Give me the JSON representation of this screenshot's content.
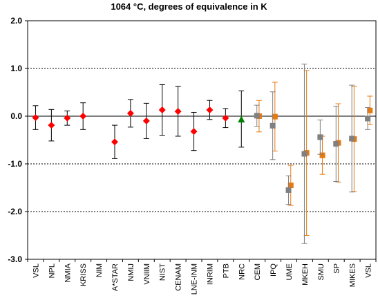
{
  "chart_data": {
    "type": "scatter",
    "title": "1064 °C, degrees of equivalence in K",
    "xlabel": "",
    "ylabel": "",
    "ylim": [
      -3.0,
      2.0
    ],
    "yticks": [
      -3.0,
      -2.0,
      -1.0,
      0.0,
      1.0,
      2.0
    ],
    "ytick_labels": [
      "-3.0",
      "-2.0",
      "-1.0",
      "0.0",
      "1.0",
      "2.0"
    ],
    "dotted_gridlines_at": [
      -2.0,
      -1.0,
      1.0
    ],
    "zero_line": true,
    "categories": [
      "VSL",
      "NPL",
      "NMIA",
      "KRISS",
      "NIM",
      "A*STAR",
      "NMIJ",
      "VNIIM",
      "NIST",
      "CENAM",
      "LNE-INM",
      "INRIM",
      "PTB",
      "NRC",
      "CEM",
      "IPQ",
      "UME",
      "MKEH",
      "SMU",
      "SP",
      "MIKES",
      "VSL"
    ],
    "series": [
      {
        "marker": "diamond",
        "color": "#ff0000",
        "bar_color": "#000000",
        "points": [
          {
            "cat": 0,
            "y": -0.03,
            "err": 0.25
          },
          {
            "cat": 1,
            "y": -0.19,
            "err": 0.33
          },
          {
            "cat": 2,
            "y": -0.04,
            "err": 0.15
          },
          {
            "cat": 3,
            "y": 0.0,
            "err": 0.28
          },
          {
            "cat": 5,
            "y": -0.54,
            "err": 0.35
          },
          {
            "cat": 6,
            "y": 0.06,
            "err": 0.29
          },
          {
            "cat": 7,
            "y": -0.1,
            "err": 0.37
          },
          {
            "cat": 8,
            "y": 0.13,
            "err": 0.53
          },
          {
            "cat": 9,
            "y": 0.1,
            "err": 0.52
          },
          {
            "cat": 10,
            "y": -0.32,
            "err": 0.4
          },
          {
            "cat": 11,
            "y": 0.13,
            "err": 0.2
          },
          {
            "cat": 12,
            "y": -0.04,
            "err": 0.2
          }
        ]
      },
      {
        "marker": "triangle",
        "color": "#008000",
        "bar_color": "#000000",
        "points": [
          {
            "cat": 13,
            "y": -0.06,
            "err": 0.59
          }
        ]
      },
      {
        "marker": "square",
        "color": "#e8790e",
        "bar_color": "#e8790e",
        "offset": 0.12,
        "points": [
          {
            "cat": 14,
            "y": 0.0,
            "err": 0.33
          },
          {
            "cat": 15,
            "y": -0.01,
            "err": 0.72
          },
          {
            "cat": 16,
            "y": -1.45,
            "err": 0.42
          },
          {
            "cat": 17,
            "y": -0.77,
            "err": 1.73
          },
          {
            "cat": 18,
            "y": -0.82,
            "err": 0.4
          },
          {
            "cat": 19,
            "y": -0.56,
            "err": 0.82
          },
          {
            "cat": 20,
            "y": -0.48,
            "err": 1.1
          },
          {
            "cat": 21,
            "y": 0.12,
            "err": 0.3
          }
        ]
      },
      {
        "marker": "square",
        "color": "#808080",
        "bar_color": "#808080",
        "offset": -0.02,
        "points": [
          {
            "cat": 14,
            "y": 0.01,
            "err": 0.22
          },
          {
            "cat": 15,
            "y": -0.2,
            "err": 0.71
          },
          {
            "cat": 16,
            "y": -1.55,
            "err": 0.3
          },
          {
            "cat": 17,
            "y": -0.79,
            "err": 1.88
          },
          {
            "cat": 18,
            "y": -0.44,
            "err": 0.36
          },
          {
            "cat": 19,
            "y": -0.58,
            "err": 0.79
          },
          {
            "cat": 20,
            "y": -0.47,
            "err": 1.12
          },
          {
            "cat": 21,
            "y": -0.05,
            "err": 0.23
          }
        ]
      }
    ]
  }
}
